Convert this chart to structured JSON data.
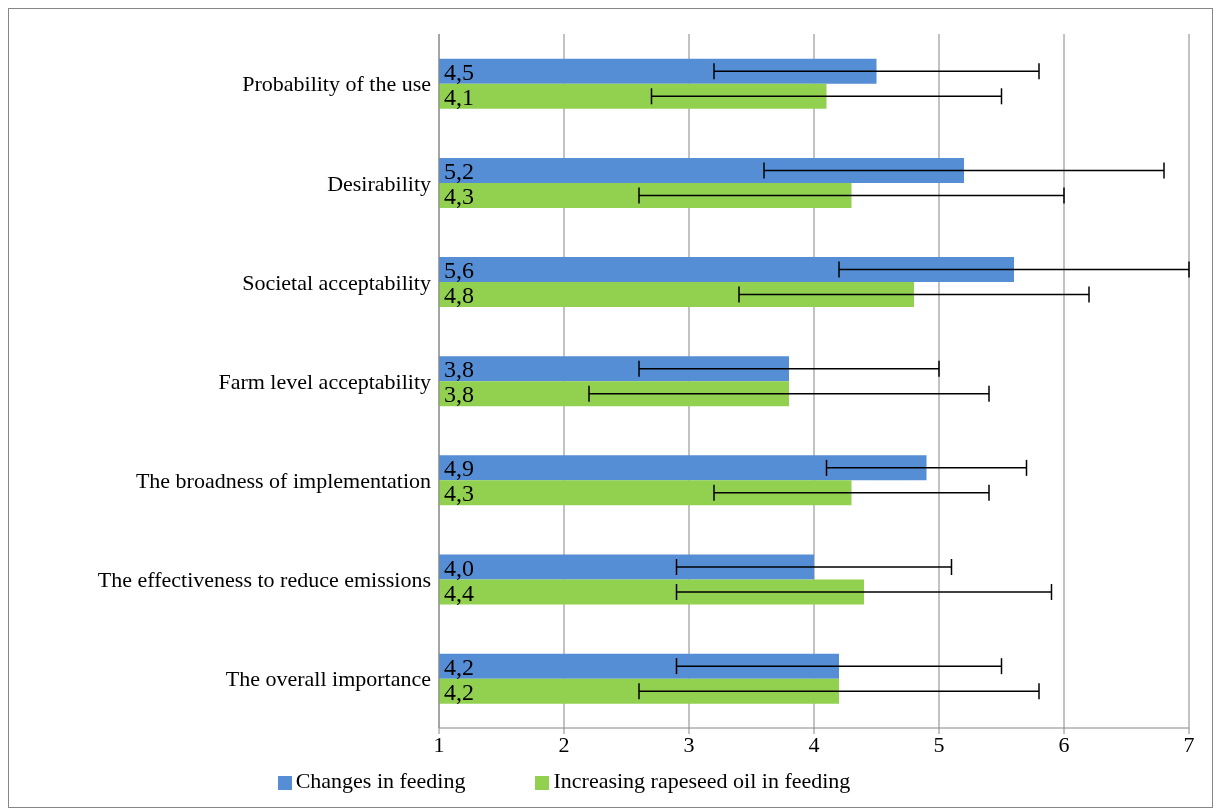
{
  "chart_data": {
    "type": "bar",
    "orientation": "horizontal",
    "categories": [
      "Probability of the use",
      "Desirability",
      "Societal acceptability",
      "Farm level acceptability",
      "The broadness of implementation",
      "The effectiveness to reduce emissions",
      "The overall importance"
    ],
    "series": [
      {
        "name": "Changes in feeding",
        "color": "#558ed5",
        "values": [
          4.5,
          5.2,
          5.6,
          3.8,
          4.9,
          4.0,
          4.2
        ],
        "value_labels": [
          "4,5",
          "5,2",
          "5,6",
          "3,8",
          "4,9",
          "4,0",
          "4,2"
        ],
        "errors": [
          [
            3.2,
            5.8
          ],
          [
            3.6,
            6.8
          ],
          [
            4.2,
            7.0
          ],
          [
            2.6,
            5.0
          ],
          [
            4.1,
            5.7
          ],
          [
            2.9,
            5.1
          ],
          [
            2.9,
            5.5
          ]
        ]
      },
      {
        "name": "Increasing rapeseed oil in feeding",
        "color": "#92d050",
        "values": [
          4.1,
          4.3,
          4.8,
          3.8,
          4.3,
          4.4,
          4.2
        ],
        "value_labels": [
          "4,1",
          "4,3",
          "4,8",
          "3,8",
          "4,3",
          "4,4",
          "4,2"
        ],
        "errors": [
          [
            2.7,
            5.5
          ],
          [
            2.6,
            6.0
          ],
          [
            3.4,
            6.2
          ],
          [
            2.2,
            5.4
          ],
          [
            3.2,
            5.4
          ],
          [
            2.9,
            5.9
          ],
          [
            2.6,
            5.8
          ]
        ]
      }
    ],
    "xlim": [
      1,
      7
    ],
    "xticks": [
      1,
      2,
      3,
      4,
      5,
      6,
      7
    ],
    "grid": "x",
    "legend": "bottom"
  }
}
